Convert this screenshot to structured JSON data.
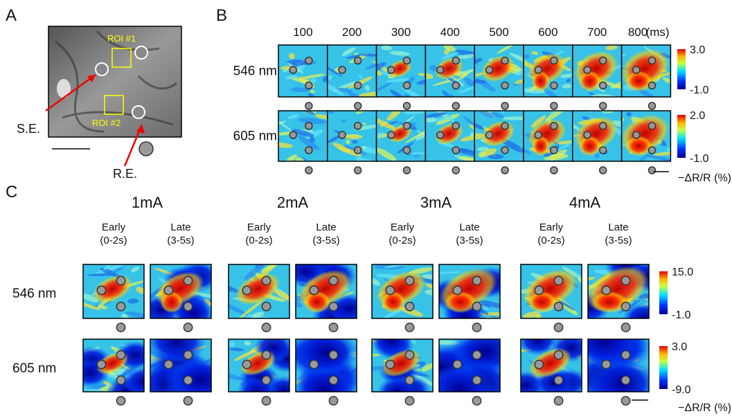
{
  "panel_a": {
    "label": "A",
    "roi_1": "ROI #1",
    "roi_2": "ROI #2",
    "stim_electrode": "S.E.",
    "record_electrode": "R.E."
  },
  "panel_b": {
    "label": "B",
    "times": [
      "100",
      "200",
      "300",
      "400",
      "500",
      "600",
      "700",
      "800"
    ],
    "time_unit": "(ms)",
    "rows": [
      {
        "label": "546 nm",
        "cbar_max": "3.0",
        "cbar_min": "-1.0"
      },
      {
        "label": "605 nm",
        "cbar_max": "2.0",
        "cbar_min": "-1.0"
      }
    ],
    "unit": "−ΔR/R (%)"
  },
  "panel_c": {
    "label": "C",
    "currents": [
      "1mA",
      "2mA",
      "3mA",
      "4mA"
    ],
    "early": "Early",
    "early_window": "(0-2s)",
    "late": "Late",
    "late_window": "(3-5s)",
    "rows": [
      {
        "label": "546 nm",
        "cbar_max": "15.0",
        "cbar_min": "-1.0"
      },
      {
        "label": "605 nm",
        "cbar_max": "3.0",
        "cbar_min": "-9.0"
      }
    ],
    "unit": "−ΔR/R (%)"
  }
}
